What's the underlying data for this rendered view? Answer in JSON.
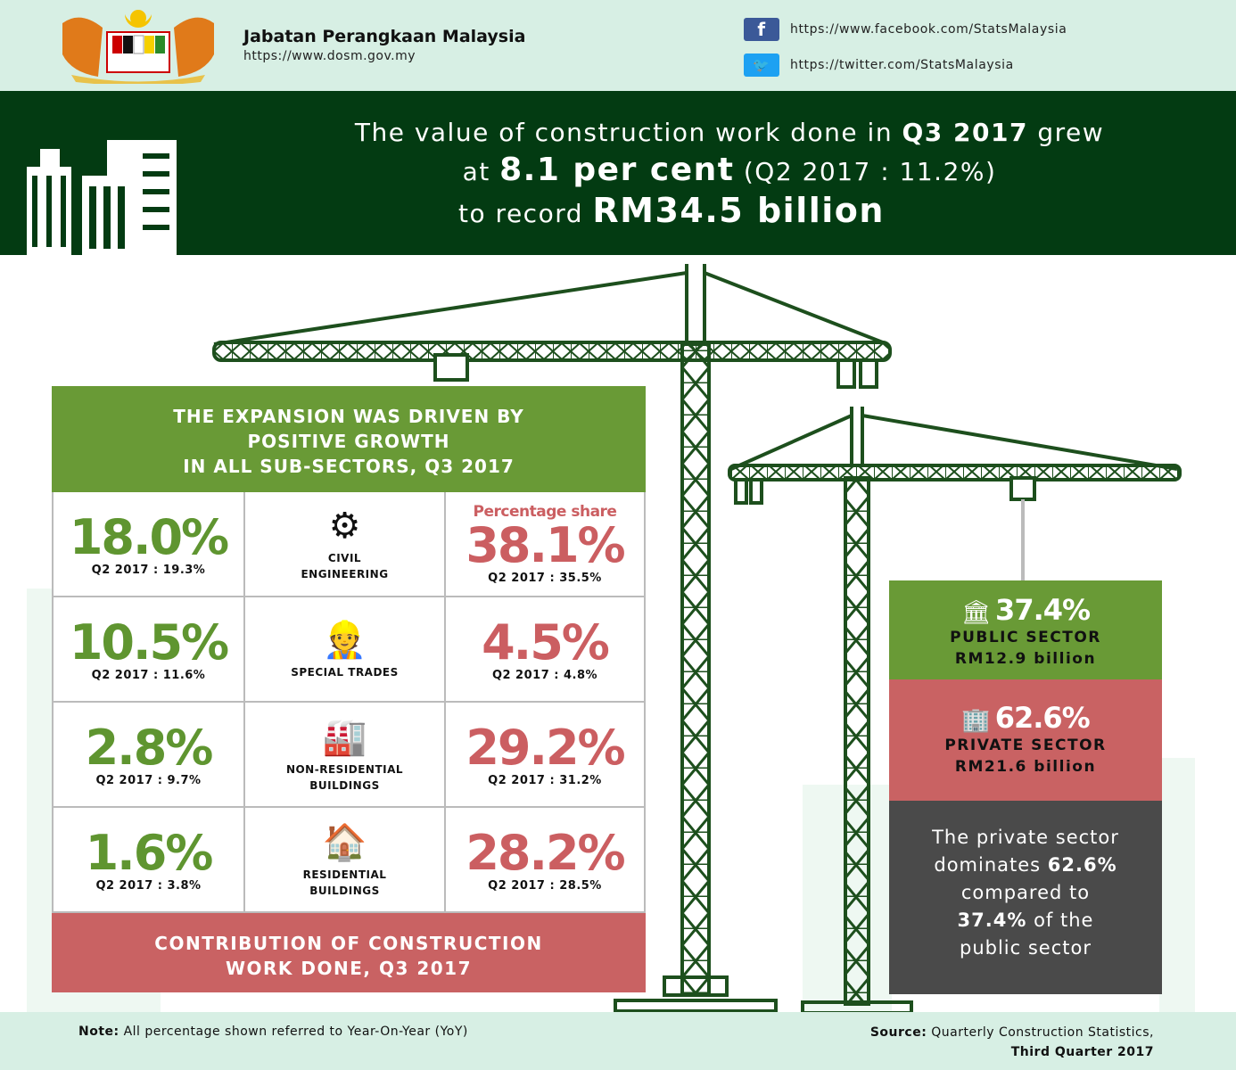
{
  "header": {
    "org": "Jabatan Perangkaan Malaysia",
    "url": "https://www.dosm.gov.my",
    "facebook": "https://www.facebook.com/StatsMalaysia",
    "twitter": "https://twitter.com/StatsMalaysia",
    "logo_text": "Bersekutu Bertambah Mutu"
  },
  "headline": {
    "l1a": "The value of construction work done in ",
    "l1b": "Q3 2017",
    "l1c": " grew",
    "l2a": "at ",
    "l2b": "8.1 per cent",
    "l2c": " (Q2 2017 : 11.2%)",
    "l3a": "to record ",
    "l3b": "RM34.5 billion"
  },
  "table": {
    "title": [
      "THE EXPANSION WAS DRIVEN BY",
      "POSITIVE GROWTH",
      "IN ALL SUB-SECTORS, Q3 2017"
    ],
    "share_label": "Percentage share",
    "rows": [
      {
        "growth": "18.0%",
        "growth_prev": "Q2 2017 : 19.3%",
        "sector": [
          "CIVIL",
          "ENGINEERING"
        ],
        "share": "38.1%",
        "share_prev": "Q2 2017 : 35.5%"
      },
      {
        "growth": "10.5%",
        "growth_prev": "Q2 2017 : 11.6%",
        "sector": [
          "SPECIAL TRADES",
          ""
        ],
        "share": "4.5%",
        "share_prev": "Q2 2017 : 4.8%"
      },
      {
        "growth": "2.8%",
        "growth_prev": "Q2 2017 : 9.7%",
        "sector": [
          "NON-RESIDENTIAL",
          "BUILDINGS"
        ],
        "share": "29.2%",
        "share_prev": "Q2 2017 : 31.2%"
      },
      {
        "growth": "1.6%",
        "growth_prev": "Q2 2017 : 3.8%",
        "sector": [
          "RESIDENTIAL",
          "BUILDINGS"
        ],
        "share": "28.2%",
        "share_prev": "Q2 2017 : 28.5%"
      }
    ],
    "footer": [
      "CONTRIBUTION OF CONSTRUCTION",
      "WORK DONE, Q3 2017"
    ]
  },
  "sectors": {
    "public": {
      "pct": "37.4%",
      "label": "PUBLIC SECTOR",
      "value": "RM12.9 billion"
    },
    "private": {
      "pct": "62.6%",
      "label": "PRIVATE SECTOR",
      "value": "RM21.6 billion"
    },
    "summary": {
      "a": "The private sector",
      "b": "dominates ",
      "c": "62.6%",
      "d": "compared to",
      "e": "37.4%",
      "f": " of the",
      "g": "public sector"
    }
  },
  "footer": {
    "note_label": "Note:",
    "note": " All percentage shown referred to Year-On-Year (YoY)",
    "source_label": "Source:",
    "source": " Quarterly Construction Statistics,",
    "source2": "Third Quarter 2017"
  },
  "colors": {
    "green": "#699a36",
    "red": "#c96263",
    "dark": "#033b12",
    "grey": "#4a4a4a"
  }
}
